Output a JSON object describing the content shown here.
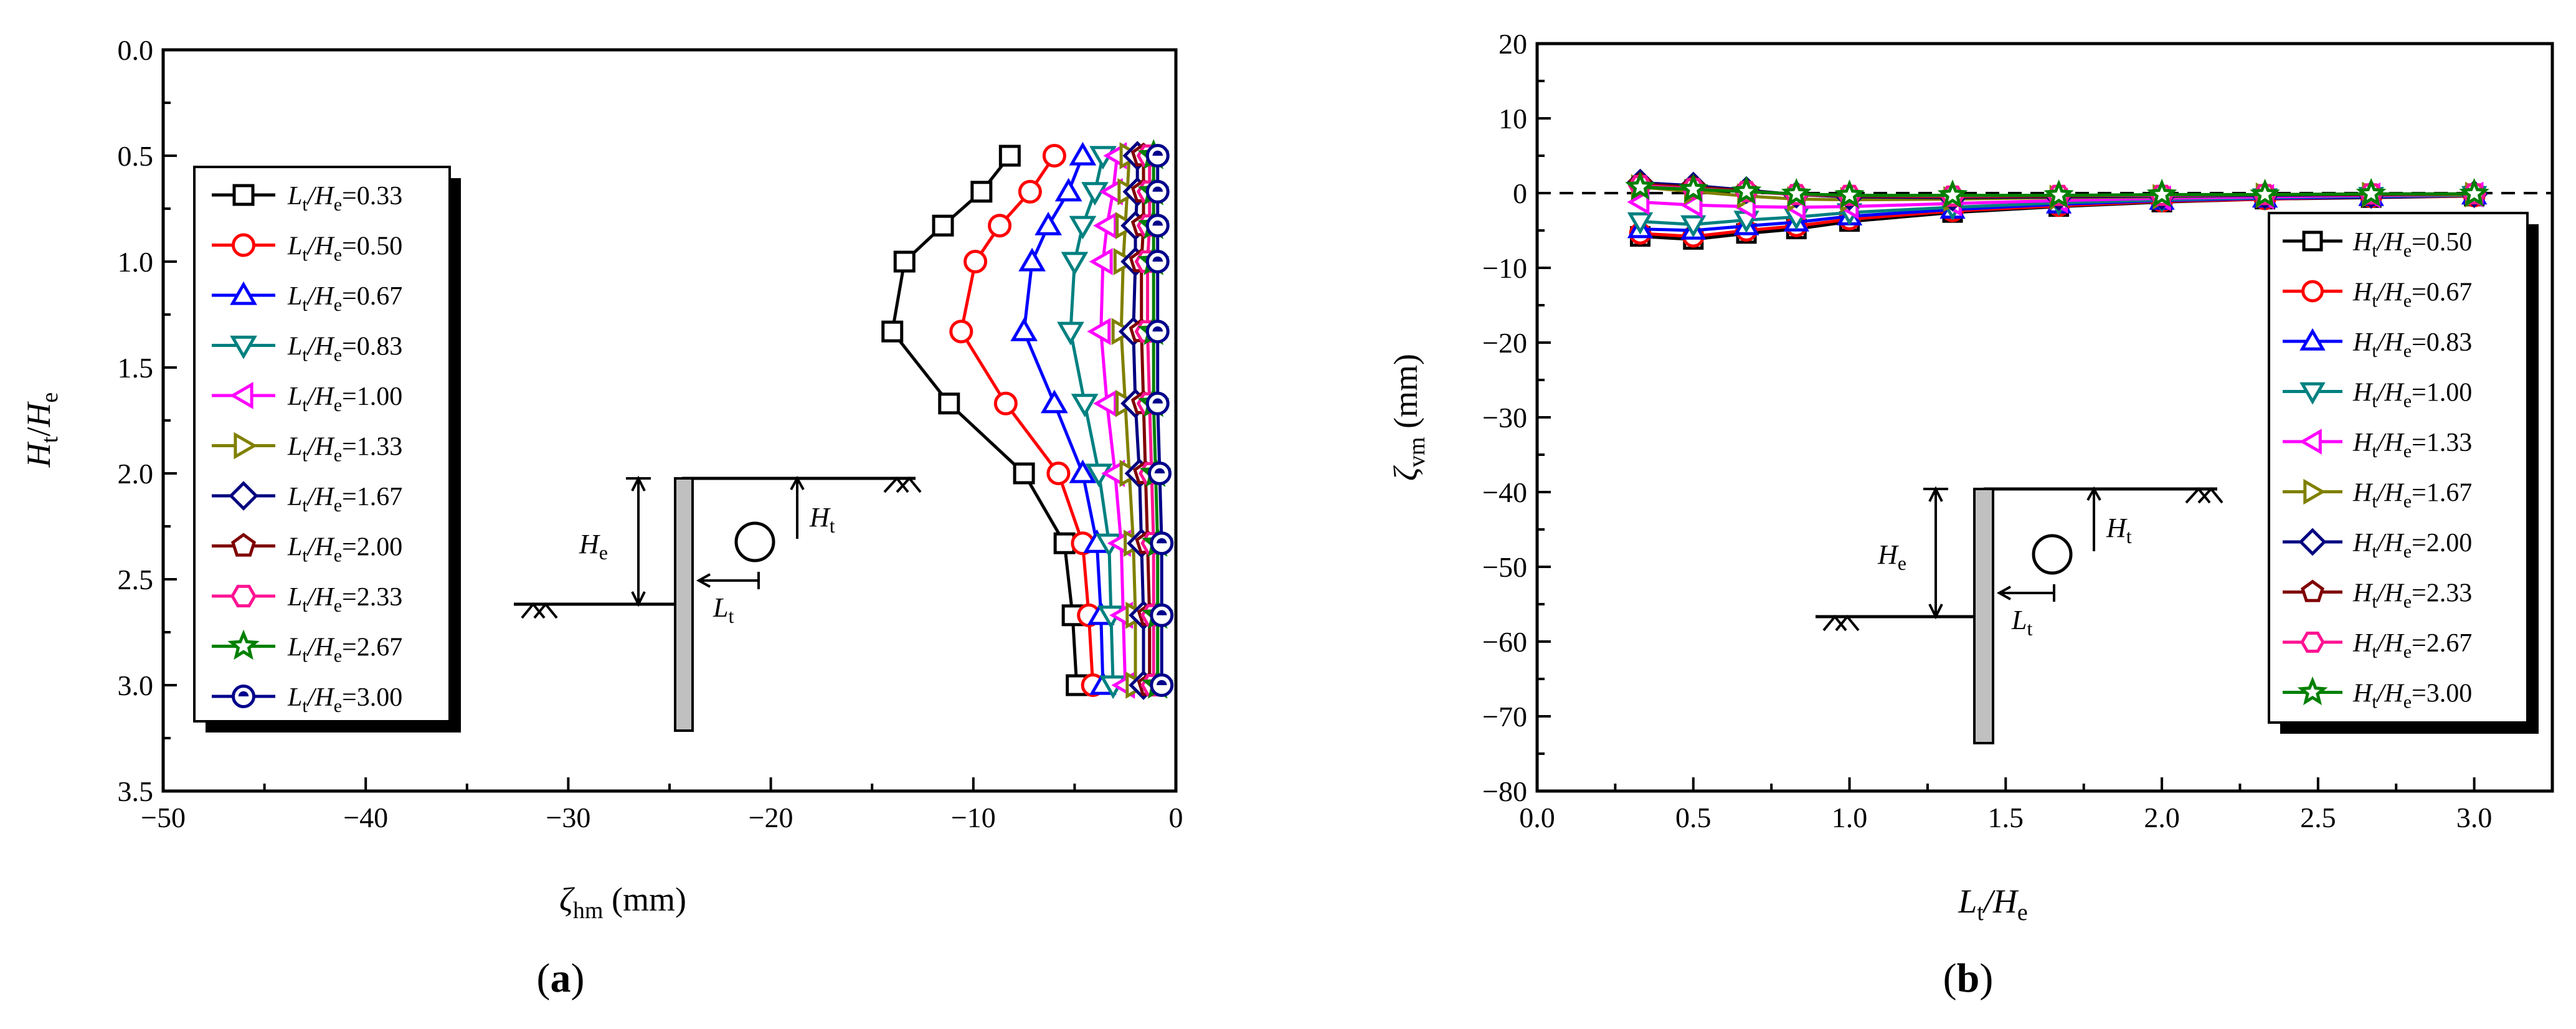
{
  "panel_a": {
    "label_open": "(",
    "label_letter": "a",
    "label_close": ")",
    "xlabel_sym": "ζ",
    "xlabel_sub": "hm",
    "xlabel_unit": " (mm)",
    "ylabel_n": "H",
    "ylabel_n_sub": "t",
    "ylabel_d": "H",
    "ylabel_d_sub": "e",
    "legend_sym": "L",
    "legend_sym_sub": "t",
    "legend_den": "/H",
    "legend_den_sub": "e"
  },
  "panel_b": {
    "label_open": "(",
    "label_letter": "b",
    "label_close": ")",
    "xlabel_n": "L",
    "xlabel_n_sub": "t",
    "xlabel_d": "/H",
    "xlabel_d_sub": "e",
    "ylabel_sym": "ζ",
    "ylabel_sub": "vm",
    "ylabel_unit": " (mm)",
    "legend_sym": "H",
    "legend_sym_sub": "t",
    "legend_den": "/H",
    "legend_den_sub": "e"
  },
  "diagram": {
    "He": "H",
    "He_sub": "e",
    "Ht": "H",
    "Ht_sub": "t",
    "Lt": "L",
    "Lt_sub": "t"
  },
  "chart_data": [
    {
      "type": "line",
      "panel": "a",
      "xlabel": "ζhm (mm)",
      "ylabel": "Ht/He",
      "xlim": [
        -50,
        0
      ],
      "ylim": [
        0,
        3.5
      ],
      "y_inverted": true,
      "xticks": [
        -50,
        -40,
        -30,
        -20,
        -10,
        0
      ],
      "xtick_labels": [
        "−50",
        "−40",
        "−30",
        "−20",
        "−10",
        "0"
      ],
      "yticks": [
        0,
        0.5,
        1,
        1.5,
        2,
        2.5,
        3,
        3.5
      ],
      "ytick_labels": [
        "0.0",
        "0.5",
        "1.0",
        "1.5",
        "2.0",
        "2.5",
        "3.0",
        "3.5"
      ],
      "y": [
        0.5,
        0.67,
        0.83,
        1.0,
        1.33,
        1.67,
        2.0,
        2.33,
        2.67,
        3.0
      ],
      "legend_position": "left",
      "series": [
        {
          "name": "0.33",
          "color": "#000000",
          "marker": "square",
          "x": [
            -8.2,
            -9.6,
            -11.5,
            -13.4,
            -14.0,
            -11.2,
            -7.5,
            -5.5,
            -5.1,
            -4.9
          ]
        },
        {
          "name": "0.50",
          "color": "#ff0000",
          "marker": "circle",
          "x": [
            -6.0,
            -7.2,
            -8.7,
            -9.9,
            -10.6,
            -8.4,
            -5.8,
            -4.6,
            -4.3,
            -4.1
          ]
        },
        {
          "name": "0.67",
          "color": "#0000ff",
          "marker": "triangle-up",
          "x": [
            -4.6,
            -5.3,
            -6.3,
            -7.1,
            -7.5,
            -6.0,
            -4.6,
            -3.9,
            -3.7,
            -3.6
          ]
        },
        {
          "name": "0.83",
          "color": "#008080",
          "marker": "triangle-down",
          "x": [
            -3.6,
            -4.0,
            -4.6,
            -5.0,
            -5.2,
            -4.5,
            -3.8,
            -3.3,
            -3.2,
            -3.1
          ]
        },
        {
          "name": "1.00",
          "color": "#ff00ff",
          "marker": "triangle-left",
          "x": [
            -2.9,
            -3.1,
            -3.4,
            -3.6,
            -3.7,
            -3.4,
            -3.0,
            -2.7,
            -2.6,
            -2.5
          ]
        },
        {
          "name": "1.33",
          "color": "#808000",
          "marker": "triangle-right",
          "x": [
            -2.3,
            -2.4,
            -2.5,
            -2.6,
            -2.7,
            -2.5,
            -2.3,
            -2.1,
            -2.0,
            -2.0
          ]
        },
        {
          "name": "1.67",
          "color": "#000080",
          "marker": "diamond",
          "x": [
            -1.9,
            -1.9,
            -2.0,
            -2.0,
            -2.1,
            -2.0,
            -1.8,
            -1.7,
            -1.6,
            -1.6
          ]
        },
        {
          "name": "2.00",
          "color": "#800000",
          "marker": "pentagon",
          "x": [
            -1.6,
            -1.6,
            -1.6,
            -1.7,
            -1.7,
            -1.6,
            -1.5,
            -1.4,
            -1.3,
            -1.3
          ]
        },
        {
          "name": "2.33",
          "color": "#ff1493",
          "marker": "hexagon",
          "x": [
            -1.3,
            -1.3,
            -1.3,
            -1.4,
            -1.4,
            -1.3,
            -1.2,
            -1.1,
            -1.1,
            -1.1
          ]
        },
        {
          "name": "2.67",
          "color": "#008000",
          "marker": "star",
          "x": [
            -1.1,
            -1.1,
            -1.1,
            -1.1,
            -1.1,
            -1.1,
            -1.0,
            -0.9,
            -0.9,
            -0.9
          ]
        },
        {
          "name": "3.00",
          "color": "#00008b",
          "marker": "half-circle",
          "x": [
            -0.9,
            -0.9,
            -0.9,
            -0.9,
            -0.9,
            -0.9,
            -0.8,
            -0.7,
            -0.7,
            -0.7
          ]
        }
      ]
    },
    {
      "type": "line",
      "panel": "b",
      "xlabel": "Lt/He",
      "ylabel": "ζvm (mm)",
      "xlim": [
        0,
        3.25
      ],
      "ylim": [
        -80,
        20
      ],
      "xticks": [
        0,
        0.5,
        1,
        1.5,
        2,
        2.5,
        3
      ],
      "xtick_labels": [
        "0.0",
        "0.5",
        "1.0",
        "1.5",
        "2.0",
        "2.5",
        "3.0"
      ],
      "yticks": [
        -80,
        -70,
        -60,
        -50,
        -40,
        -30,
        -20,
        -10,
        0,
        10,
        20
      ],
      "ytick_labels": [
        "−80",
        "−70",
        "−60",
        "−50",
        "−40",
        "−30",
        "−20",
        "−10",
        "0",
        "10",
        "20"
      ],
      "reference_line_y": 0,
      "x": [
        0.33,
        0.5,
        0.67,
        0.83,
        1.0,
        1.33,
        1.67,
        2.0,
        2.33,
        2.67,
        3.0
      ],
      "legend_position": "right",
      "series": [
        {
          "name": "0.50",
          "color": "#000000",
          "marker": "square",
          "y": [
            -5.8,
            -6.2,
            -5.4,
            -4.8,
            -3.8,
            -2.6,
            -1.8,
            -1.2,
            -0.8,
            -0.6,
            -0.4
          ]
        },
        {
          "name": "0.67",
          "color": "#ff0000",
          "marker": "circle",
          "y": [
            -5.4,
            -5.8,
            -5.0,
            -4.4,
            -3.5,
            -2.4,
            -1.7,
            -1.1,
            -0.8,
            -0.5,
            -0.4
          ]
        },
        {
          "name": "0.83",
          "color": "#0000ff",
          "marker": "triangle-up",
          "y": [
            -4.8,
            -5.0,
            -4.4,
            -3.9,
            -3.1,
            -2.2,
            -1.5,
            -1.0,
            -0.7,
            -0.5,
            -0.3
          ]
        },
        {
          "name": "1.00",
          "color": "#008080",
          "marker": "triangle-down",
          "y": [
            -3.8,
            -4.2,
            -3.6,
            -3.2,
            -2.6,
            -1.9,
            -1.3,
            -0.9,
            -0.6,
            -0.4,
            -0.3
          ]
        },
        {
          "name": "1.33",
          "color": "#ff00ff",
          "marker": "triangle-left",
          "y": [
            -1.2,
            -1.6,
            -1.8,
            -1.9,
            -1.8,
            -1.4,
            -1.0,
            -0.7,
            -0.5,
            -0.3,
            -0.2
          ]
        },
        {
          "name": "1.67",
          "color": "#808000",
          "marker": "triangle-right",
          "y": [
            0.8,
            0.2,
            -0.4,
            -0.8,
            -0.9,
            -0.8,
            -0.6,
            -0.5,
            -0.3,
            -0.2,
            -0.2
          ]
        },
        {
          "name": "2.00",
          "color": "#000080",
          "marker": "diamond",
          "y": [
            1.4,
            1.0,
            0.4,
            -0.2,
            -0.5,
            -0.6,
            -0.5,
            -0.4,
            -0.3,
            -0.2,
            -0.1
          ]
        },
        {
          "name": "2.33",
          "color": "#800000",
          "marker": "pentagon",
          "y": [
            1.2,
            0.8,
            0.3,
            -0.2,
            -0.4,
            -0.5,
            -0.4,
            -0.3,
            -0.2,
            -0.2,
            -0.1
          ]
        },
        {
          "name": "2.67",
          "color": "#ff1493",
          "marker": "hexagon",
          "y": [
            1.0,
            0.6,
            0.2,
            -0.2,
            -0.3,
            -0.4,
            -0.3,
            -0.3,
            -0.2,
            -0.1,
            -0.1
          ]
        },
        {
          "name": "3.00",
          "color": "#008000",
          "marker": "star",
          "y": [
            0.8,
            0.5,
            0.2,
            -0.1,
            -0.3,
            -0.3,
            -0.3,
            -0.2,
            -0.2,
            -0.1,
            -0.1
          ]
        }
      ]
    }
  ]
}
